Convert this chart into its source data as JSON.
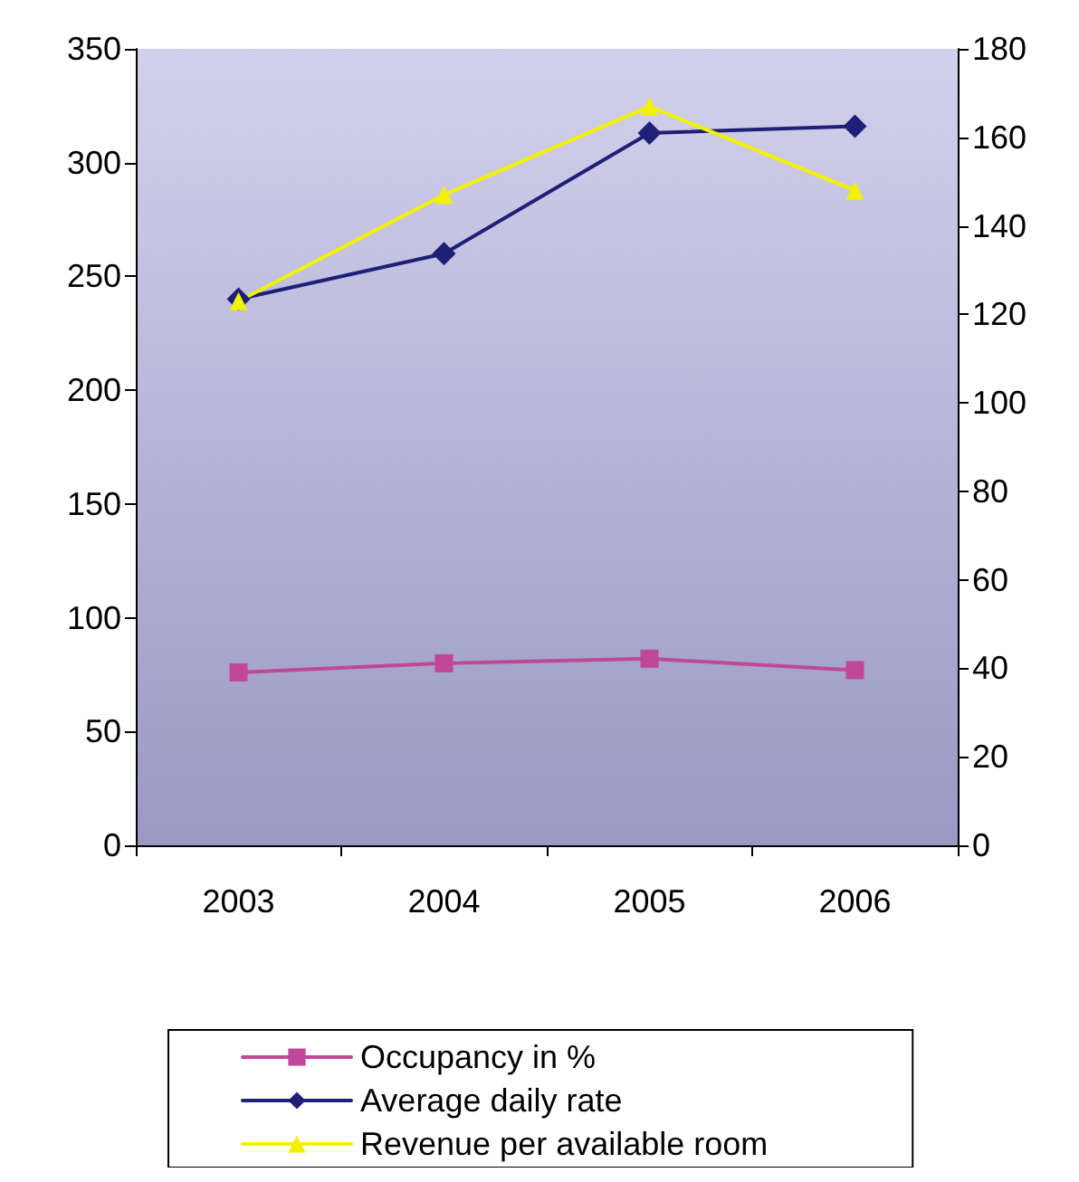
{
  "chart_data": {
    "type": "line",
    "categories": [
      "2003",
      "2004",
      "2005",
      "2006"
    ],
    "series": [
      {
        "name": "Occupancy in %",
        "color": "#c0479a",
        "marker": "square",
        "values": [
          76,
          80,
          82,
          77
        ]
      },
      {
        "name": "Average daily rate",
        "color": "#1f1f78",
        "marker": "diamond",
        "values": [
          240,
          260,
          313,
          316
        ]
      },
      {
        "name": "Revenue per available room",
        "color": "#f2f200",
        "marker": "triangle",
        "axis": "y2",
        "values": [
          123,
          147,
          167,
          148
        ]
      }
    ],
    "ylim": [
      0,
      350
    ],
    "yticks": [
      0,
      50,
      100,
      150,
      200,
      250,
      300,
      350
    ],
    "y2lim": [
      0,
      180
    ],
    "y2ticks": [
      0,
      20,
      40,
      60,
      80,
      100,
      120,
      140,
      160,
      180
    ],
    "grid": false,
    "legend": "bottom"
  }
}
